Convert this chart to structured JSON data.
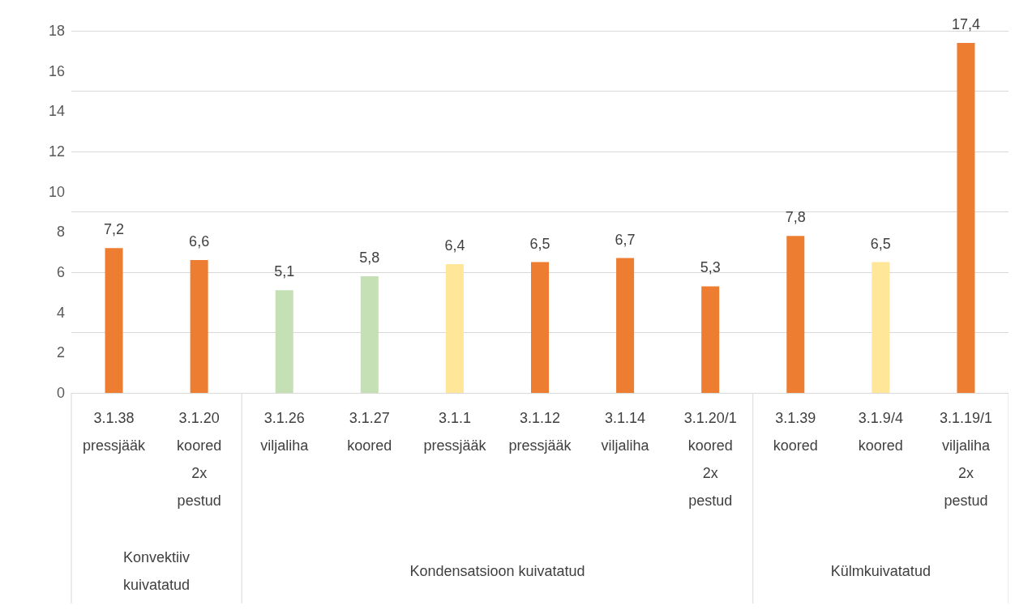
{
  "chart_data": {
    "type": "bar",
    "categories": [
      "3.1.38\npressjääk",
      "3.1.20\nkoored\n2x\npestud",
      "3.1.26\nviljaliha",
      "3.1.27\nkoored",
      "3.1.1\npressjääk",
      "3.1.12\npressjääk",
      "3.1.14\nviljaliha",
      "3.1.20/1\nkoored\n2x\npestud",
      "3.1.39\nkoored",
      "3.1.9/4\nkoored",
      "3.1.19/1\nviljaliha\n2x\npestud"
    ],
    "values": [
      7.2,
      6.6,
      5.1,
      5.8,
      6.4,
      6.5,
      6.7,
      5.3,
      7.8,
      6.5,
      17.4
    ],
    "colors": [
      "#ed7d31",
      "#ed7d31",
      "#c5e0b4",
      "#c5e0b4",
      "#ffe699",
      "#ed7d31",
      "#ed7d31",
      "#ed7d31",
      "#ed7d31",
      "#ffe699",
      "#ed7d31"
    ],
    "value_labels": [
      "7,2",
      "6,6",
      "5,1",
      "5,8",
      "6,4",
      "6,5",
      "6,7",
      "5,3",
      "7,8",
      "6,5",
      "17,4"
    ],
    "ylim": [
      0,
      18
    ],
    "yticks": [
      0,
      2,
      4,
      6,
      8,
      10,
      12,
      14,
      16,
      18
    ],
    "grid": "y",
    "annotations": [
      "Konvektiiv\nkuivatatud",
      "Kondensatsioon kuivatatud",
      "Külmkuivatatud"
    ]
  }
}
